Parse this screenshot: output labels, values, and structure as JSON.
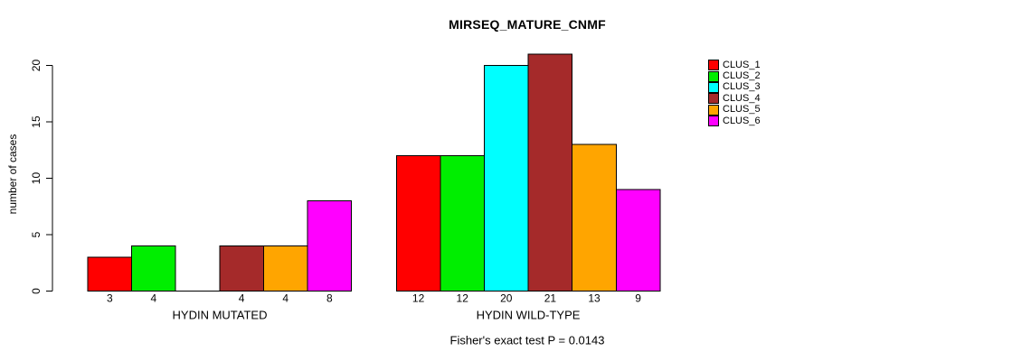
{
  "chart_data": {
    "type": "bar",
    "title": "MIRSEQ_MATURE_CNMF",
    "ylabel": "number of cases",
    "xlabel": "",
    "ylim": [
      0,
      21
    ],
    "yticks": [
      0,
      5,
      10,
      15,
      20
    ],
    "grid": false,
    "legend_position": "right-top",
    "categories": [
      "HYDIN MUTATED",
      "HYDIN WILD-TYPE"
    ],
    "series": [
      {
        "name": "CLUS_1",
        "color": "#FF0000",
        "values": [
          3,
          12
        ]
      },
      {
        "name": "CLUS_2",
        "color": "#00EE00",
        "values": [
          4,
          12
        ]
      },
      {
        "name": "CLUS_3",
        "color": "#00FFFF",
        "values": [
          0,
          20
        ]
      },
      {
        "name": "CLUS_4",
        "color": "#A52A2A",
        "values": [
          4,
          21
        ]
      },
      {
        "name": "CLUS_5",
        "color": "#FFA500",
        "values": [
          4,
          13
        ]
      },
      {
        "name": "CLUS_6",
        "color": "#FF00FF",
        "values": [
          8,
          9
        ]
      }
    ],
    "bar_value_labels": [
      [
        "3",
        "4",
        "",
        "4",
        "4",
        "8"
      ],
      [
        "12",
        "12",
        "20",
        "21",
        "13",
        "9"
      ]
    ],
    "annotation": "Fisher's exact test P = 0.0143",
    "axis_color": "#000000",
    "background_color": "#FFFFFF"
  }
}
